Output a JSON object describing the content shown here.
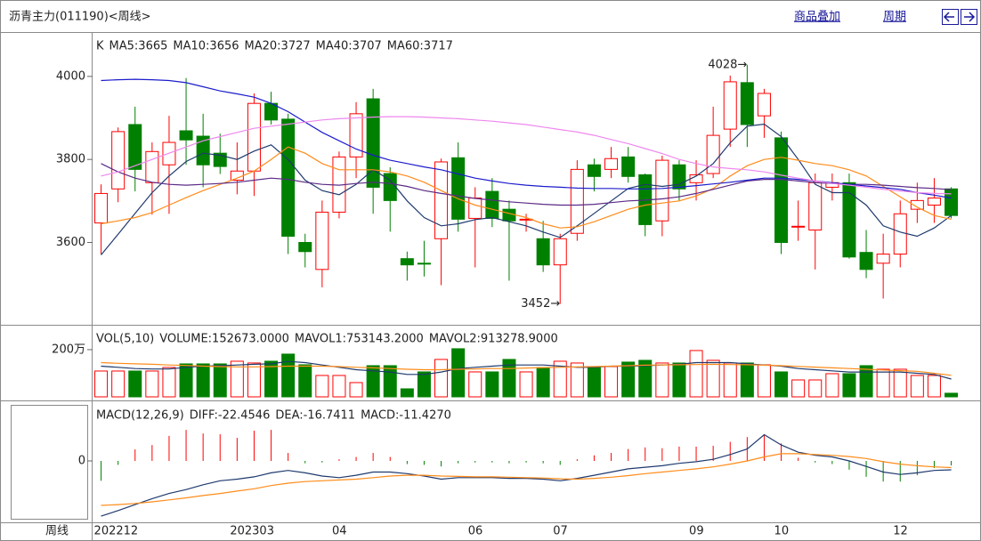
{
  "header": {
    "title": "沥青主力(011190)<周线>",
    "links": [
      "商品叠加",
      "周期"
    ]
  },
  "x_axis_label": "周线",
  "chart_data": [
    {
      "type": "candlestick",
      "legend_label": "K",
      "categories": [
        "202212",
        null,
        null,
        null,
        null,
        null,
        null,
        null,
        "202303",
        null,
        null,
        null,
        null,
        null,
        "04",
        null,
        null,
        null,
        null,
        null,
        null,
        null,
        "06",
        null,
        null,
        null,
        null,
        "07",
        null,
        null,
        null,
        null,
        null,
        null,
        null,
        "09",
        null,
        null,
        null,
        null,
        "10",
        null,
        null,
        null,
        null,
        null,
        null,
        "12",
        null,
        null,
        null
      ],
      "open": [
        3647,
        3729,
        3884,
        3744,
        3787,
        3869,
        3856,
        3815,
        3750,
        3772,
        3935,
        3897,
        3600,
        3535,
        3673,
        3806,
        3946,
        3766,
        3561,
        3550,
        3609,
        3804,
        3658,
        3723,
        3680,
        3654,
        3609,
        3546,
        3622,
        3787,
        3776,
        3806,
        3763,
        3652,
        3787,
        3744,
        3766,
        3873,
        3985,
        3905,
        3852,
        3637,
        3630,
        3733,
        3744,
        3576,
        3550,
        3572,
        3680,
        3690,
        3729
      ],
      "high": [
        3740,
        3877,
        3927,
        3841,
        3905,
        3996,
        3910,
        3862,
        3841,
        3959,
        3963,
        3910,
        3621,
        3701,
        3819,
        3938,
        3970,
        3781,
        3578,
        3604,
        3802,
        3841,
        3733,
        3755,
        3701,
        3669,
        3652,
        3621,
        3798,
        3802,
        3830,
        3830,
        3766,
        3809,
        3798,
        3798,
        3927,
        4002,
        4028,
        3970,
        3867,
        3701,
        3766,
        3766,
        3766,
        3630,
        3621,
        3701,
        3744,
        3755,
        3733
      ],
      "low": [
        3572,
        3697,
        3723,
        3667,
        3669,
        3787,
        3733,
        3765,
        3716,
        3712,
        3884,
        3572,
        3540,
        3492,
        3658,
        3755,
        3669,
        3626,
        3508,
        3518,
        3497,
        3626,
        3540,
        3637,
        3508,
        3626,
        3529,
        3452,
        3604,
        3723,
        3755,
        3744,
        3615,
        3615,
        3701,
        3701,
        3755,
        3830,
        3830,
        3852,
        3572,
        3604,
        3535,
        3701,
        3561,
        3514,
        3465,
        3540,
        3647,
        3647,
        3658
      ],
      "close": [
        3718,
        3867,
        3776,
        3819,
        3841,
        3847,
        3787,
        3783,
        3772,
        3935,
        3895,
        3615,
        3578,
        3673,
        3806,
        3910,
        3733,
        3701,
        3546,
        3548,
        3794,
        3656,
        3707,
        3658,
        3652,
        3656,
        3546,
        3609,
        3776,
        3759,
        3802,
        3759,
        3643,
        3798,
        3729,
        3763,
        3858,
        3987,
        3884,
        3959,
        3600,
        3639,
        3744,
        3744,
        3565,
        3535,
        3572,
        3669,
        3701,
        3707,
        3665
      ],
      "up_color": "#ff0000",
      "down_color": "#008000",
      "series": [
        {
          "name": "MA5:3665",
          "color": "#1f3a6e",
          "values": [
            3570,
            3620,
            3670,
            3720,
            3760,
            3795,
            3815,
            3810,
            3800,
            3820,
            3835,
            3800,
            3750,
            3725,
            3715,
            3740,
            3775,
            3750,
            3700,
            3660,
            3640,
            3645,
            3655,
            3660,
            3650,
            3640,
            3625,
            3612,
            3640,
            3670,
            3700,
            3730,
            3740,
            3735,
            3740,
            3760,
            3790,
            3840,
            3880,
            3885,
            3855,
            3800,
            3740,
            3720,
            3720,
            3690,
            3640,
            3625,
            3615,
            3635,
            3665
          ]
        },
        {
          "name": "MA10:3656",
          "color": "#ff8c1a",
          "values": [
            3645,
            3652,
            3660,
            3672,
            3690,
            3708,
            3725,
            3740,
            3755,
            3772,
            3800,
            3830,
            3815,
            3790,
            3775,
            3775,
            3775,
            3770,
            3760,
            3745,
            3725,
            3705,
            3690,
            3680,
            3670,
            3660,
            3645,
            3635,
            3638,
            3650,
            3665,
            3680,
            3690,
            3695,
            3700,
            3712,
            3730,
            3760,
            3785,
            3800,
            3805,
            3798,
            3790,
            3785,
            3775,
            3760,
            3735,
            3710,
            3685,
            3665,
            3656
          ]
        },
        {
          "name": "MA20:3727",
          "color": "#5b2a86",
          "values": [
            3790,
            3770,
            3755,
            3745,
            3740,
            3738,
            3740,
            3742,
            3745,
            3750,
            3755,
            3752,
            3745,
            3740,
            3738,
            3742,
            3745,
            3742,
            3735,
            3725,
            3718,
            3712,
            3706,
            3702,
            3698,
            3695,
            3692,
            3690,
            3690,
            3692,
            3696,
            3700,
            3702,
            3705,
            3710,
            3718,
            3728,
            3738,
            3748,
            3752,
            3752,
            3748,
            3744,
            3742,
            3740,
            3740,
            3738,
            3735,
            3732,
            3730,
            3727
          ]
        },
        {
          "name": "MA40:3707",
          "color": "#1c1ccc",
          "values": [
            3990,
            3992,
            3993,
            3992,
            3990,
            3985,
            3975,
            3965,
            3958,
            3950,
            3935,
            3915,
            3890,
            3865,
            3845,
            3825,
            3810,
            3798,
            3790,
            3782,
            3775,
            3765,
            3755,
            3748,
            3742,
            3738,
            3735,
            3733,
            3731,
            3730,
            3730,
            3729,
            3729,
            3730,
            3733,
            3737,
            3741,
            3745,
            3750,
            3755,
            3755,
            3752,
            3748,
            3744,
            3740,
            3736,
            3732,
            3728,
            3720,
            3714,
            3707
          ]
        },
        {
          "name": "MA60:3717",
          "color": "#ee88ee",
          "values": [
            3760,
            3770,
            3785,
            3800,
            3815,
            3830,
            3845,
            3855,
            3865,
            3875,
            3880,
            3885,
            3890,
            3895,
            3898,
            3900,
            3902,
            3903,
            3903,
            3902,
            3900,
            3898,
            3895,
            3892,
            3888,
            3884,
            3878,
            3872,
            3866,
            3858,
            3848,
            3838,
            3826,
            3814,
            3800,
            3790,
            3782,
            3778,
            3775,
            3770,
            3762,
            3755,
            3748,
            3742,
            3738,
            3733,
            3728,
            3724,
            3720,
            3718,
            3717
          ]
        }
      ],
      "ylim": [
        3406,
        4094
      ],
      "yticks": [
        3600,
        3800,
        4000
      ],
      "grid": false,
      "annotations": [
        "4028→",
        "3452→"
      ]
    },
    {
      "type": "bar",
      "title": "VOL(5,10)",
      "value_name": "VOLUME:152673.0000",
      "values": [
        1094000,
        1094000,
        1094000,
        1094000,
        1245000,
        1396000,
        1396000,
        1396000,
        1509000,
        1434000,
        1509000,
        1811000,
        1358000,
        906000,
        906000,
        604000,
        1321000,
        1321000,
        340000,
        1057000,
        1585000,
        2038000,
        1057000,
        1057000,
        1585000,
        1057000,
        1245000,
        1509000,
        1434000,
        1283000,
        1283000,
        1472000,
        1547000,
        1434000,
        1434000,
        1962000,
        1547000,
        1434000,
        1434000,
        1358000,
        1057000,
        717000,
        717000,
        981000,
        981000,
        1321000,
        1170000,
        1170000,
        906000,
        906000,
        152673
      ],
      "series": [
        {
          "name": "MAVOL1:753143.2000",
          "color": "#1f3a6e",
          "values": [
            1300000,
            1250000,
            1200000,
            1180000,
            1180000,
            1250000,
            1300000,
            1320000,
            1350000,
            1380000,
            1400000,
            1500000,
            1450000,
            1350000,
            1250000,
            1150000,
            1100000,
            1050000,
            950000,
            950000,
            1050000,
            1200000,
            1250000,
            1300000,
            1350000,
            1350000,
            1350000,
            1300000,
            1250000,
            1250000,
            1300000,
            1300000,
            1320000,
            1350000,
            1380000,
            1450000,
            1450000,
            1450000,
            1400000,
            1350000,
            1300000,
            1200000,
            1150000,
            1100000,
            1050000,
            1050000,
            1050000,
            1050000,
            1000000,
            950000,
            753143.2
          ]
        },
        {
          "name": "MAVOL2:913278.9000",
          "color": "#ff8c1a",
          "values": [
            1450000,
            1420000,
            1400000,
            1380000,
            1350000,
            1330000,
            1300000,
            1280000,
            1270000,
            1270000,
            1280000,
            1300000,
            1300000,
            1300000,
            1280000,
            1250000,
            1230000,
            1200000,
            1170000,
            1150000,
            1150000,
            1170000,
            1180000,
            1200000,
            1200000,
            1220000,
            1240000,
            1250000,
            1270000,
            1280000,
            1300000,
            1320000,
            1340000,
            1350000,
            1360000,
            1370000,
            1380000,
            1370000,
            1360000,
            1340000,
            1320000,
            1290000,
            1260000,
            1230000,
            1200000,
            1170000,
            1140000,
            1110000,
            1080000,
            1000000,
            913278.9
          ]
        }
      ],
      "ylim": [
        0,
        2940000
      ],
      "yticks": [
        {
          "value": 2000000,
          "label": "200万"
        }
      ]
    },
    {
      "type": "macd",
      "title": "MACD(12,26,9)",
      "series": [
        {
          "name": "DIFF:-22.4546",
          "color": "#1f3a6e",
          "values": [
            -139,
            -125,
            -110,
            -95,
            -82,
            -72,
            -60,
            -50,
            -46,
            -40,
            -30,
            -24,
            -30,
            -38,
            -42,
            -36,
            -28,
            -28,
            -32,
            -38,
            -46,
            -42,
            -42,
            -42,
            -44,
            -44,
            -46,
            -50,
            -44,
            -36,
            -28,
            -20,
            -16,
            -12,
            -6,
            -2,
            4,
            16,
            30,
            66,
            40,
            22,
            14,
            10,
            0,
            -14,
            -28,
            -34,
            -30,
            -24,
            -22.4546
          ]
        },
        {
          "name": "DEA:-16.7411",
          "color": "#ff8c1a",
          "values": [
            -112,
            -110,
            -107,
            -103,
            -98,
            -93,
            -87,
            -82,
            -76,
            -70,
            -62,
            -56,
            -52,
            -50,
            -48,
            -46,
            -42,
            -38,
            -36,
            -36,
            -38,
            -39,
            -40,
            -40,
            -41,
            -42,
            -43,
            -45,
            -46,
            -44,
            -41,
            -37,
            -32,
            -28,
            -24,
            -20,
            -15,
            -8,
            0,
            10,
            18,
            18,
            16,
            14,
            11,
            6,
            -2,
            -8,
            -12,
            -15,
            -16.7411
          ]
        }
      ],
      "histogram": {
        "name": "MACD:-11.4270",
        "values": [
          -50,
          -10,
          29,
          40,
          63,
          78,
          69,
          67,
          58,
          76,
          78,
          20,
          -6,
          -4,
          4,
          10,
          20,
          10,
          -8,
          -10,
          -14,
          -6,
          -4,
          -4,
          -6,
          -4,
          -6,
          -10,
          4,
          14,
          20,
          30,
          34,
          32,
          36,
          36,
          38,
          48,
          60,
          66,
          44,
          8,
          -4,
          -8,
          -22,
          -40,
          -52,
          -52,
          -36,
          -18,
          -11.427
        ]
      },
      "ylim": [
        -150,
        141
      ],
      "yticks": [
        0
      ]
    }
  ]
}
